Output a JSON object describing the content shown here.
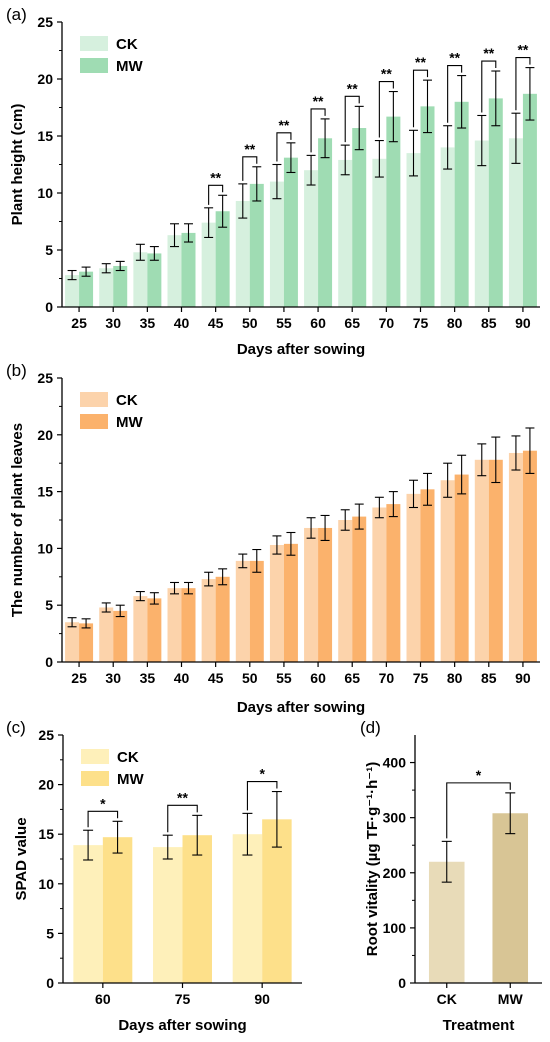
{
  "chart_data": [
    {
      "panel": "(a)",
      "type": "bar",
      "categories": [
        "25",
        "30",
        "35",
        "40",
        "45",
        "50",
        "55",
        "60",
        "65",
        "70",
        "75",
        "80",
        "85",
        "90"
      ],
      "series": [
        {
          "name": "CK",
          "color": "#d6f0de",
          "values": [
            2.8,
            3.4,
            4.8,
            6.3,
            7.4,
            9.3,
            11.0,
            12.0,
            12.9,
            13.0,
            13.5,
            14.0,
            14.6,
            14.8
          ],
          "errors": [
            0.4,
            0.4,
            0.7,
            1.0,
            1.3,
            1.5,
            1.5,
            1.3,
            1.3,
            1.6,
            2.0,
            1.9,
            2.2,
            2.2
          ]
        },
        {
          "name": "MW",
          "color": "#9fdcb3",
          "values": [
            3.1,
            3.6,
            4.7,
            6.5,
            8.4,
            10.8,
            13.1,
            14.8,
            15.7,
            16.7,
            17.6,
            18.0,
            18.3,
            18.7
          ],
          "errors": [
            0.4,
            0.4,
            0.6,
            0.8,
            1.4,
            1.5,
            1.3,
            1.7,
            1.9,
            2.2,
            2.3,
            2.3,
            2.4,
            2.3
          ]
        }
      ],
      "significance": [
        "",
        "",
        "",
        "",
        "**",
        "**",
        "**",
        "**",
        "**",
        "**",
        "**",
        "**",
        "**",
        "**"
      ],
      "ylim": [
        0,
        25
      ],
      "yticks": [
        "0",
        "5",
        "10",
        "15",
        "20",
        "25"
      ],
      "xlabel": "Days after sowing",
      "ylabel": "Plant height (cm)",
      "legend": "top-left"
    },
    {
      "panel": "(b)",
      "type": "bar",
      "categories": [
        "25",
        "30",
        "35",
        "40",
        "45",
        "50",
        "55",
        "60",
        "65",
        "70",
        "75",
        "80",
        "85",
        "90"
      ],
      "series": [
        {
          "name": "CK",
          "color": "#fcd3ab",
          "values": [
            3.5,
            4.8,
            5.8,
            6.5,
            7.3,
            8.9,
            10.3,
            11.8,
            12.5,
            13.6,
            14.8,
            16.0,
            17.8,
            18.4
          ],
          "errors": [
            0.4,
            0.4,
            0.4,
            0.5,
            0.6,
            0.6,
            0.8,
            0.9,
            0.9,
            0.9,
            1.2,
            1.5,
            1.4,
            1.5
          ]
        },
        {
          "name": "MW",
          "color": "#fbb26c",
          "values": [
            3.4,
            4.5,
            5.6,
            6.5,
            7.5,
            8.9,
            10.4,
            11.8,
            12.8,
            13.9,
            15.2,
            16.5,
            17.8,
            18.6
          ],
          "errors": [
            0.4,
            0.5,
            0.5,
            0.5,
            0.7,
            1.0,
            1.0,
            1.1,
            1.1,
            1.1,
            1.4,
            1.7,
            2.0,
            2.0
          ]
        }
      ],
      "ylim": [
        0,
        25
      ],
      "yticks": [
        "0",
        "5",
        "10",
        "15",
        "20",
        "25"
      ],
      "xlabel": "Days after sowing",
      "ylabel": "The number of plant leaves",
      "legend": "top-left"
    },
    {
      "panel": "(c)",
      "type": "bar",
      "categories": [
        "60",
        "75",
        "90"
      ],
      "series": [
        {
          "name": "CK",
          "color": "#fef0ba",
          "values": [
            13.9,
            13.7,
            15.0
          ],
          "errors": [
            1.5,
            1.2,
            2.1
          ]
        },
        {
          "name": "MW",
          "color": "#fde08a",
          "values": [
            14.7,
            14.9,
            16.5
          ],
          "errors": [
            1.6,
            2.0,
            2.8
          ]
        }
      ],
      "significance": [
        "*",
        "**",
        "*"
      ],
      "ylim": [
        0,
        25
      ],
      "yticks": [
        "0",
        "5",
        "10",
        "15",
        "20",
        "25"
      ],
      "xlabel": "Days after sowing",
      "ylabel": "SPAD value",
      "legend": "top-left"
    },
    {
      "panel": "(d)",
      "type": "bar",
      "categories": [
        "CK",
        "MW"
      ],
      "colors": [
        "#e8dbb8",
        "#d8c595"
      ],
      "values": [
        220,
        308
      ],
      "errors": [
        37,
        37
      ],
      "significance": "*",
      "ylim": [
        0,
        450
      ],
      "yticks": [
        "0",
        "100",
        "200",
        "300",
        "400"
      ],
      "xlabel": "Treatment",
      "ylabel": "Root vitality (µg TF·g⁻¹·h⁻¹)"
    }
  ]
}
